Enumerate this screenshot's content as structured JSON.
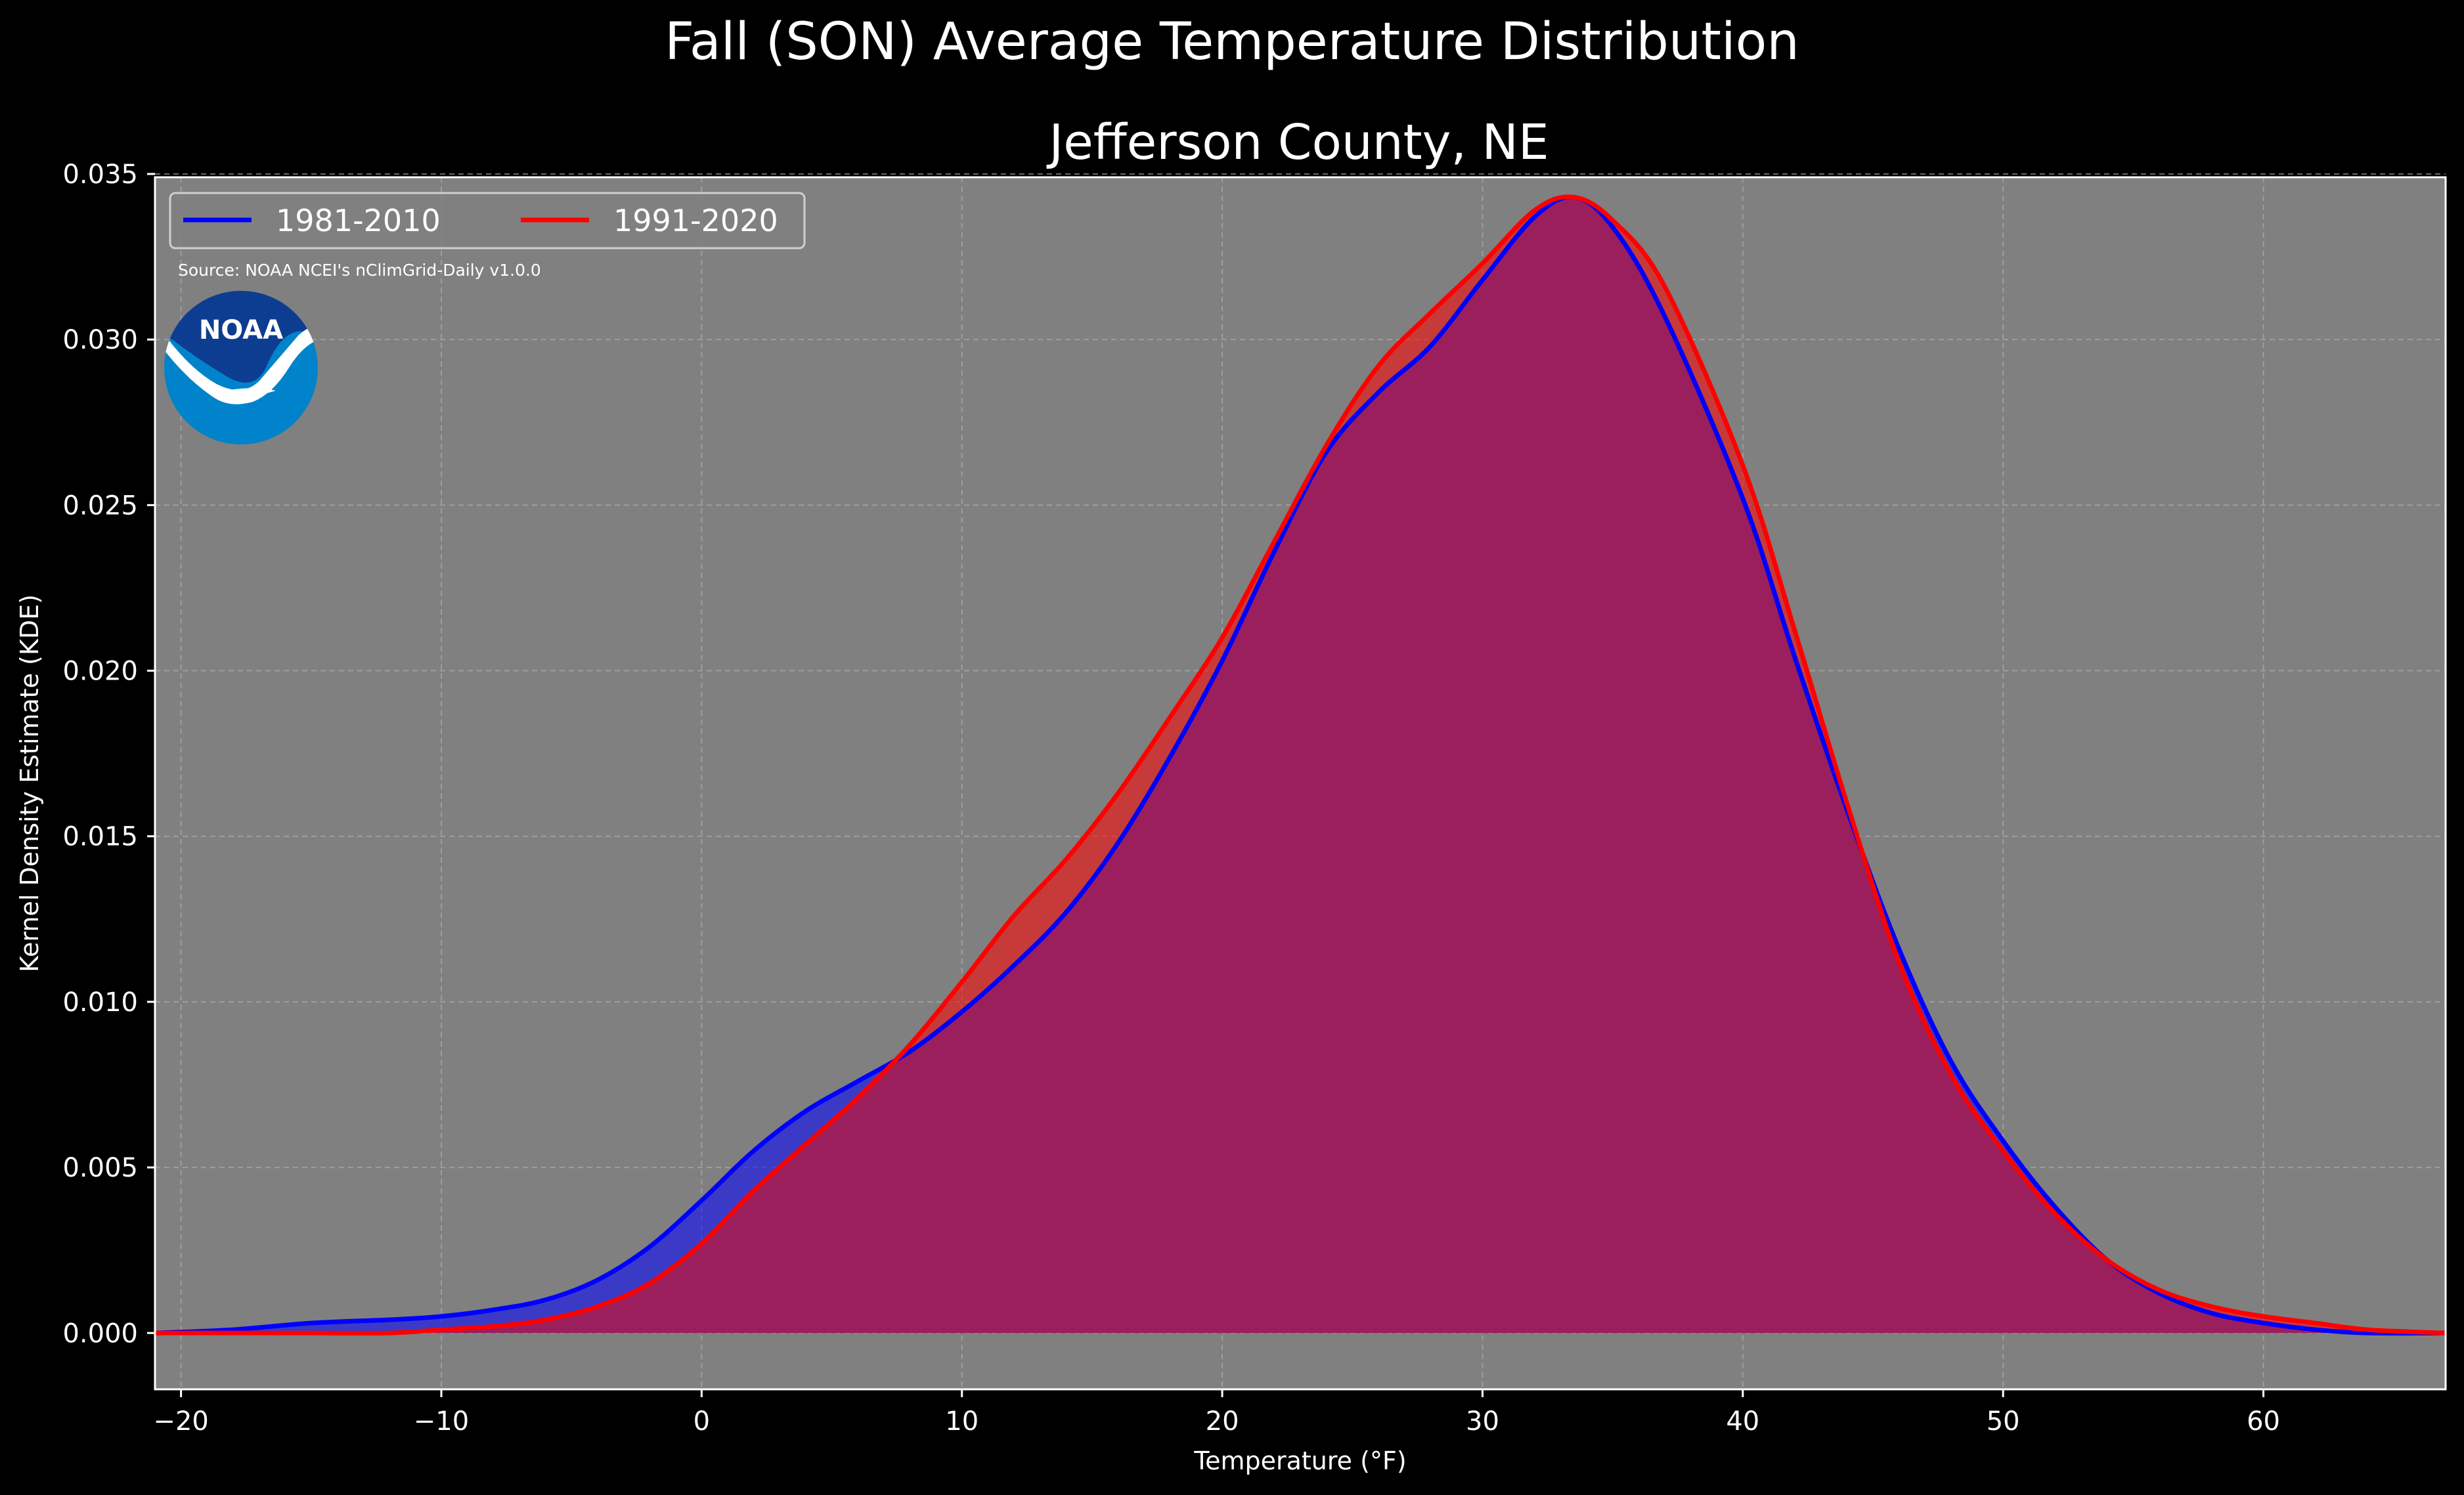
{
  "chart_data": {
    "type": "area",
    "suptitle": "Fall (SON) Average Temperature Distribution",
    "title": "Jefferson County, NE",
    "xlabel": "Temperature (°F)",
    "ylabel": "Kernel Density Estimate (KDE)",
    "xlim": [
      -21,
      67
    ],
    "ylim": [
      -0.0017,
      0.0349
    ],
    "xticks": [
      -20,
      -10,
      0,
      10,
      20,
      30,
      40,
      50,
      60
    ],
    "xtick_labels": [
      "−20",
      "−10",
      "0",
      "10",
      "20",
      "30",
      "40",
      "50",
      "60"
    ],
    "yticks": [
      0,
      0.005,
      0.01,
      0.015,
      0.02,
      0.025,
      0.03,
      0.035
    ],
    "ytick_labels": [
      "0.000",
      "0.005",
      "0.010",
      "0.015",
      "0.020",
      "0.025",
      "0.030",
      "0.035"
    ],
    "grid": true,
    "legend_position": "top-left",
    "source_note": "Source: NOAA NCEI's nClimGrid-Daily v1.0.0",
    "logo_text": "NOAA",
    "colors": {
      "figure_background": "#000000",
      "plot_background": "#808080",
      "grid": "#b3b3b3",
      "overlap_fill": "#9b1f5c"
    },
    "series": [
      {
        "name": "1981-2010",
        "color": "#0000ff",
        "fill_color": "#0000ff",
        "x": [
          -21,
          -18,
          -15,
          -12,
          -10,
          -8,
          -6,
          -4,
          -2,
          0,
          2,
          4,
          6,
          8,
          10,
          12,
          14,
          16,
          18,
          20,
          22,
          24,
          26,
          28,
          30,
          32,
          33.5,
          35,
          37,
          40,
          42,
          44,
          46,
          48,
          50,
          52,
          54,
          56,
          58,
          60,
          62,
          64,
          67
        ],
        "values": [
          0.0,
          0.0001,
          0.0003,
          0.0004,
          0.0005,
          0.0007,
          0.001,
          0.0016,
          0.0026,
          0.004,
          0.0055,
          0.0067,
          0.0076,
          0.0085,
          0.0097,
          0.0111,
          0.0127,
          0.0148,
          0.0174,
          0.0203,
          0.0236,
          0.0266,
          0.0284,
          0.0298,
          0.0318,
          0.0337,
          0.0343,
          0.0334,
          0.0307,
          0.0252,
          0.0204,
          0.0158,
          0.0116,
          0.0082,
          0.0058,
          0.0038,
          0.0022,
          0.0012,
          0.0006,
          0.0003,
          0.0001,
          0.0,
          0.0
        ]
      },
      {
        "name": "1991-2020",
        "color": "#ff0000",
        "fill_color": "#ff0000",
        "x": [
          -21,
          -18,
          -15,
          -12,
          -10,
          -8,
          -6,
          -4,
          -2,
          0,
          2,
          4,
          6,
          8,
          10,
          12,
          14,
          16,
          18,
          20,
          22,
          24,
          26,
          28,
          30,
          32,
          33.5,
          35,
          37,
          40,
          42,
          44,
          46,
          48,
          50,
          52,
          54,
          56,
          58,
          60,
          62,
          64,
          67
        ],
        "values": [
          0.0,
          0.0,
          0.0,
          0.0,
          0.0001,
          0.0002,
          0.0004,
          0.0008,
          0.0015,
          0.0027,
          0.0043,
          0.0057,
          0.0071,
          0.0087,
          0.0106,
          0.0126,
          0.0143,
          0.0163,
          0.0186,
          0.021,
          0.0239,
          0.0268,
          0.0292,
          0.0308,
          0.0323,
          0.0339,
          0.0343,
          0.0336,
          0.0316,
          0.0262,
          0.0212,
          0.016,
          0.0112,
          0.0078,
          0.0055,
          0.0036,
          0.0022,
          0.0013,
          0.0008,
          0.0005,
          0.0003,
          0.0001,
          0.0
        ]
      }
    ]
  }
}
